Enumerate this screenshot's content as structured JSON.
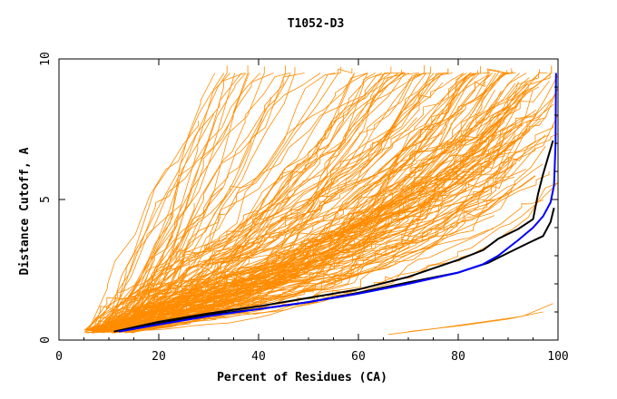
{
  "chart_data": {
    "type": "line",
    "title": "T1052-D3",
    "xlabel": "Percent of Residues (CA)",
    "ylabel": "Distance Cutoff, A",
    "xlim": [
      0,
      100
    ],
    "ylim": [
      0,
      10
    ],
    "x_ticks": [
      0,
      20,
      40,
      60,
      80,
      100
    ],
    "y_ticks": [
      0,
      5,
      10
    ],
    "x_tick_labels": [
      "0",
      "20",
      "40",
      "60",
      "80",
      "100"
    ],
    "y_tick_labels": [
      "0",
      "5",
      "10"
    ],
    "grid": false,
    "legend": "none",
    "colors": {
      "models": "#ff8c00",
      "highlight_black": "#000000",
      "highlight_blue": "#0000ff",
      "axis": "#000000"
    },
    "series": [
      {
        "color": "#000000",
        "points": [
          [
            11,
            0.3
          ],
          [
            20,
            0.65
          ],
          [
            30,
            0.95
          ],
          [
            40,
            1.2
          ],
          [
            50,
            1.5
          ],
          [
            60,
            1.8
          ],
          [
            70,
            2.25
          ],
          [
            80,
            2.85
          ],
          [
            85,
            3.2
          ],
          [
            88,
            3.6
          ],
          [
            92,
            3.95
          ],
          [
            95,
            4.3
          ],
          [
            96,
            5.2
          ],
          [
            97,
            5.9
          ],
          [
            98,
            6.5
          ],
          [
            99,
            7.1
          ]
        ]
      },
      {
        "color": "#000000",
        "points": [
          [
            12,
            0.32
          ],
          [
            20,
            0.58
          ],
          [
            30,
            0.9
          ],
          [
            40,
            1.1
          ],
          [
            50,
            1.35
          ],
          [
            60,
            1.68
          ],
          [
            70,
            2.05
          ],
          [
            80,
            2.4
          ],
          [
            86,
            2.75
          ],
          [
            90,
            3.1
          ],
          [
            94,
            3.45
          ],
          [
            97,
            3.7
          ],
          [
            98.5,
            4.2
          ],
          [
            99.2,
            4.7
          ]
        ]
      },
      {
        "color": "#0000ff",
        "points": [
          [
            12,
            0.3
          ],
          [
            20,
            0.55
          ],
          [
            30,
            0.85
          ],
          [
            40,
            1.1
          ],
          [
            50,
            1.35
          ],
          [
            60,
            1.65
          ],
          [
            70,
            2.0
          ],
          [
            80,
            2.4
          ],
          [
            85,
            2.7
          ],
          [
            88,
            3.0
          ],
          [
            92,
            3.55
          ],
          [
            95,
            4.0
          ],
          [
            97,
            4.4
          ],
          [
            98.5,
            4.9
          ],
          [
            99.2,
            5.5
          ],
          [
            99.5,
            7.0
          ],
          [
            99.6,
            9.5
          ]
        ]
      }
    ]
  }
}
